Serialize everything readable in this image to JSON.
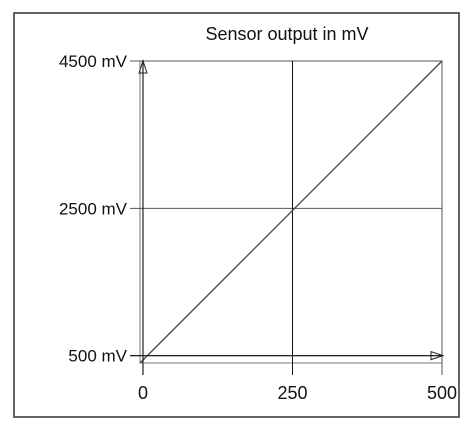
{
  "chart_data": {
    "type": "line",
    "title": "Sensor output in mV",
    "xlabel": "",
    "ylabel": "",
    "xlim": [
      -5,
      500
    ],
    "ylim": [
      400,
      4500
    ],
    "x_ticks": [
      {
        "value": 0,
        "label": "0"
      },
      {
        "value": 250,
        "label": "250"
      },
      {
        "value": 500,
        "label": "500"
      }
    ],
    "y_ticks": [
      {
        "value": 500,
        "label": "500 mV"
      },
      {
        "value": 2500,
        "label": "2500 mV"
      },
      {
        "value": 4500,
        "label": "4500 mV"
      }
    ],
    "series": [
      {
        "x": [
          -5,
          500
        ],
        "y": [
          400,
          4500
        ]
      }
    ],
    "grid": true,
    "legend": "none"
  },
  "colors": {
    "frame": "#333333",
    "grid": "#555555",
    "center_grid": "#111111",
    "line": "#444444",
    "text": "#111111",
    "background": "#ffffff"
  }
}
